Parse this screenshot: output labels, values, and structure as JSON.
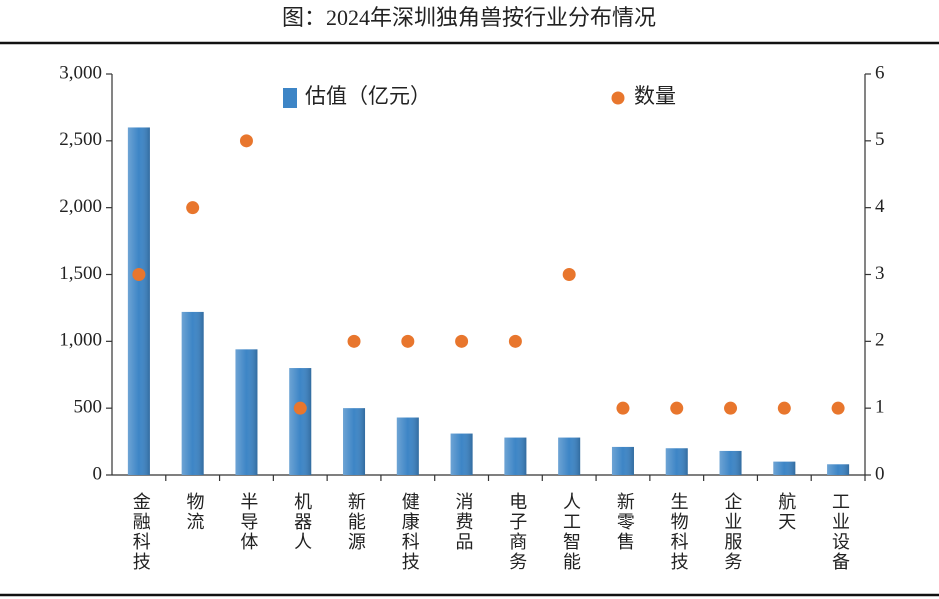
{
  "chart_data": {
    "type": "bar",
    "title": "图：2024年深圳独角兽按行业分布情况",
    "categories": [
      "金融科技",
      "物流",
      "半导体",
      "机器人",
      "新能源",
      "健康科技",
      "消费品",
      "电子商务",
      "人工智能",
      "新零售",
      "生物科技",
      "企业服务",
      "航天",
      "工业设备"
    ],
    "series": [
      {
        "name": "估值（亿元）",
        "type": "bar",
        "color": "#3d85c6",
        "values": [
          2600,
          1220,
          940,
          800,
          500,
          430,
          310,
          280,
          280,
          210,
          200,
          180,
          100,
          80
        ]
      },
      {
        "name": "数量",
        "type": "scatter",
        "axis": "y2",
        "color": "#e8762d",
        "values": [
          3,
          4,
          5,
          1,
          2,
          2,
          2,
          2,
          3,
          1,
          1,
          1,
          1,
          1
        ]
      }
    ],
    "ylim": [
      0,
      3000
    ],
    "yticks": [
      0,
      500,
      {
        "value": 1000,
        "label": "1,000"
      },
      {
        "value": 1500,
        "label": "1,500"
      },
      {
        "value": 2000,
        "label": "2,000"
      },
      {
        "value": 2500,
        "label": "2,500"
      },
      {
        "value": 3000,
        "label": "3,000"
      }
    ],
    "y2lim": [
      0,
      6
    ],
    "y2ticks": [
      0,
      1,
      2,
      3,
      4,
      5,
      6
    ]
  }
}
